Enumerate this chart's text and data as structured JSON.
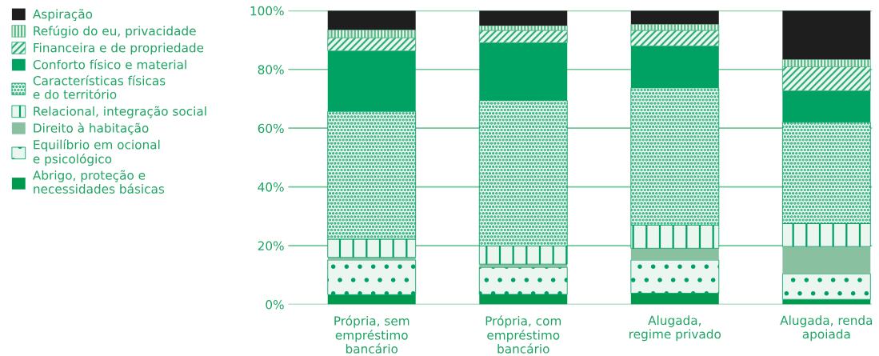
{
  "chart_data": {
    "type": "bar",
    "stacked": true,
    "categories": [
      "Própria, sem\nempréstimo\nbancário",
      "Própria, com\nempréstimo\nbancário",
      "Alugada,\nregime privado",
      "Alugada, renda\napoiada"
    ],
    "ylim": [
      0,
      100
    ],
    "yticks": [
      {
        "value": 0,
        "label": "0%"
      },
      {
        "value": 20,
        "label": "20%"
      },
      {
        "value": 40,
        "label": "40%"
      },
      {
        "value": 60,
        "label": "60%"
      },
      {
        "value": 80,
        "label": "80%"
      },
      {
        "value": 100,
        "label": "100%"
      }
    ],
    "grid": "y",
    "legend": "left",
    "series": [
      {
        "name": "Abrigo, proteção e\nnecessidades básicas",
        "color": "#009a4e",
        "values": [
          3.3,
          3.4,
          3.8,
          1.7
        ]
      },
      {
        "name": "Equilíbrio em ocional\ne psicológico",
        "color": "#00a064",
        "values": [
          11.8,
          9.2,
          11.3,
          8.7
        ]
      },
      {
        "name": "Direito à habitação",
        "color": "#88c0a0",
        "values": [
          0.9,
          1.1,
          4.0,
          9.3
        ]
      },
      {
        "name": "Relacional, integração social",
        "color": "#00a064",
        "values": [
          6.2,
          6.2,
          7.9,
          7.8
        ]
      },
      {
        "name": "Características físicas\ne do território",
        "color": "#00a064",
        "values": [
          43.5,
          49.5,
          46.7,
          34.5
        ]
      },
      {
        "name": "Conforto físico e material",
        "color": "#00a264",
        "values": [
          20.6,
          19.7,
          14.3,
          10.7
        ]
      },
      {
        "name": "Financeira e de propriedade",
        "color": "#2fae78",
        "values": [
          4.5,
          4.2,
          5.3,
          8.2
        ]
      },
      {
        "name": "Refúgio do eu, privacidade",
        "color": "#5cba8a",
        "values": [
          2.7,
          1.6,
          2.1,
          2.5
        ]
      },
      {
        "name": "Aspiração",
        "color": "#1e1e1e",
        "values": [
          6.5,
          5.1,
          4.6,
          16.6
        ]
      }
    ]
  }
}
